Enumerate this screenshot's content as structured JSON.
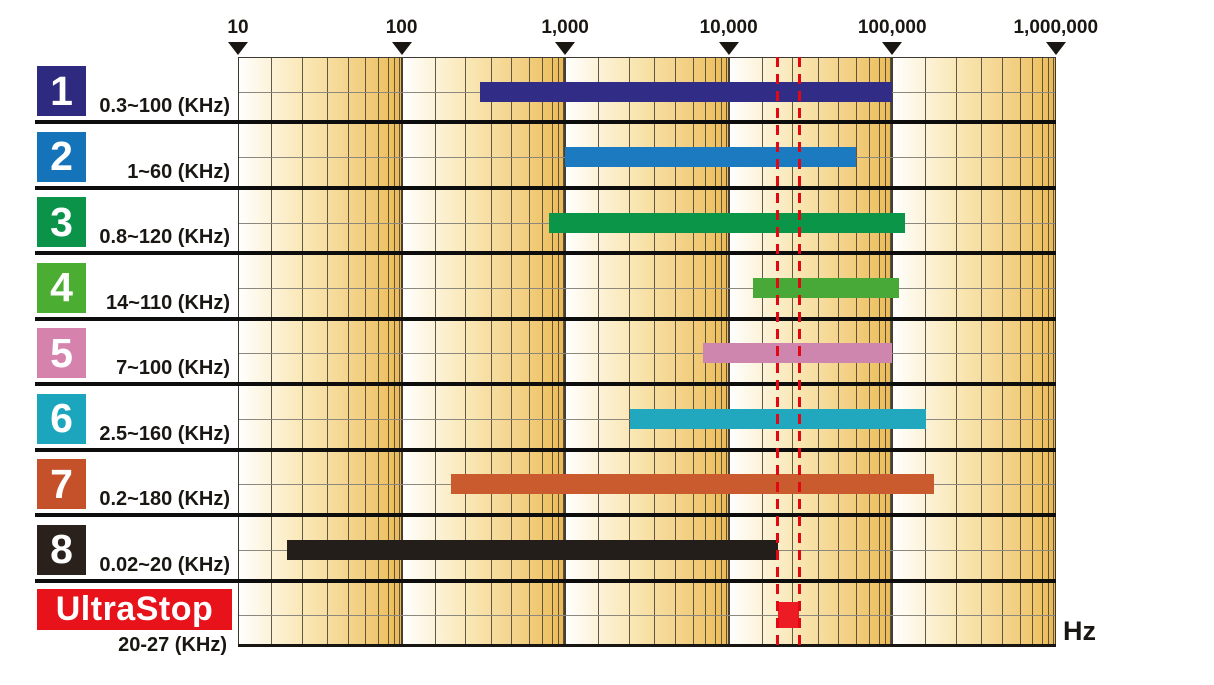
{
  "page": {
    "background": "#FFFFFF",
    "unit_label": "Hz"
  },
  "chart_data": {
    "type": "bar",
    "subtype": "horizontal-log-range-bars",
    "title": "",
    "x_axis": {
      "scale": "log",
      "unit": "Hz",
      "min": 10,
      "max": 1000000,
      "ticks": [
        {
          "label": "10",
          "value": 10
        },
        {
          "label": "100",
          "value": 100
        },
        {
          "label": "1,000",
          "value": 1000
        },
        {
          "label": "10,000",
          "value": 10000
        },
        {
          "label": "100,000",
          "value": 100000
        },
        {
          "label": "1,000,000",
          "value": 1000000
        }
      ]
    },
    "rows": [
      {
        "id": "1",
        "range_label": "0.3~100 (KHz)",
        "range_hz": [
          300,
          100000
        ],
        "chip_color": "#2E2A80",
        "bar_color": "#312C85"
      },
      {
        "id": "2",
        "range_label": "1~60 (KHz)",
        "range_hz": [
          1000,
          60000
        ],
        "chip_color": "#1573B9",
        "bar_color": "#1B7AC0"
      },
      {
        "id": "3",
        "range_label": "0.8~120 (KHz)",
        "range_hz": [
          800,
          120000
        ],
        "chip_color": "#0B9449",
        "bar_color": "#0A9549"
      },
      {
        "id": "4",
        "range_label": "14~110 (KHz)",
        "range_hz": [
          14000,
          110000
        ],
        "chip_color": "#4CAD33",
        "bar_color": "#48A838"
      },
      {
        "id": "5",
        "range_label": "7~100 (KHz)",
        "range_hz": [
          7000,
          100000
        ],
        "chip_color": "#D583AC",
        "bar_color": "#CE86AE"
      },
      {
        "id": "6",
        "range_label": "2.5~160 (KHz)",
        "range_hz": [
          2500,
          160000
        ],
        "chip_color": "#1BA6BE",
        "bar_color": "#21A8BE"
      },
      {
        "id": "7",
        "range_label": "0.2~180 (KHz)",
        "range_hz": [
          200,
          180000
        ],
        "chip_color": "#C5512A",
        "bar_color": "#C95B2E"
      },
      {
        "id": "8",
        "range_label": "0.02~20 (KHz)",
        "range_hz": [
          20,
          20000
        ],
        "chip_color": "#2A211C",
        "bar_color": "#241E1B"
      },
      {
        "id": "UltraStop",
        "banner": true,
        "banner_text": "UltraStop",
        "range_label": "20-27 (KHz)",
        "range_hz": [
          20000,
          27000
        ],
        "chip_color": "#E8121B",
        "bar_color": "#ED1C24"
      }
    ],
    "marker_band": {
      "range_hz": [
        20000,
        27000
      ],
      "color": "#E30613",
      "style": "dashed-vertical-lines"
    },
    "grid": {
      "minor_fractions": [
        0.202,
        0.39,
        0.544,
        0.671,
        0.779,
        0.856,
        0.917,
        0.955,
        0.985
      ],
      "line_color": "#453F34",
      "row_mid_line_color": "#8C887E",
      "row_divider_color": "#0D0D0D",
      "cell_gradient": [
        "#FFFFFF",
        "#EEC264"
      ]
    }
  }
}
